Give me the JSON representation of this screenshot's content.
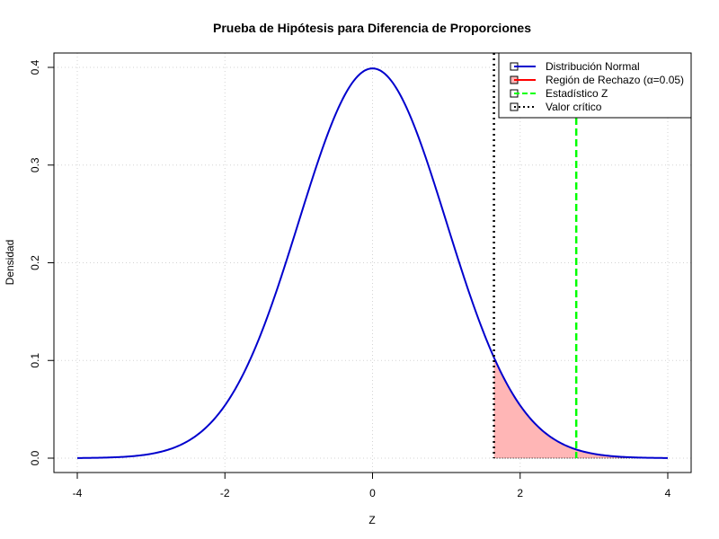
{
  "chart_data": {
    "type": "line",
    "title": "Prueba de Hipótesis para Diferencia de Proporciones",
    "xlabel": "Z",
    "ylabel": "Densidad",
    "xlim": [
      -4,
      4
    ],
    "ylim": [
      0,
      0.4
    ],
    "x_ticks": [
      "-4",
      "-2",
      "0",
      "2",
      "4"
    ],
    "x_tick_values": [
      -4,
      -2,
      0,
      2,
      4
    ],
    "y_ticks": [
      "0.0",
      "0.1",
      "0.2",
      "0.3",
      "0.4"
    ],
    "y_tick_values": [
      0,
      0.1,
      0.2,
      0.3,
      0.4
    ],
    "grid": true,
    "legend_position": "top-right",
    "curve": {
      "distribution": "normal",
      "mean": 0,
      "sd": 1,
      "color": "#0000CD"
    },
    "rejection_region": {
      "from": 1.645,
      "to": 4,
      "fill": "#FFB6B6",
      "alpha": 0.05
    },
    "z_statistic": {
      "value": 2.76,
      "color": "#00FF00"
    },
    "critical_value": {
      "value": 1.645,
      "color": "#000000"
    },
    "legend": [
      {
        "label": "Distribución Normal",
        "color": "#0000CD",
        "style": "solid"
      },
      {
        "label": "Región de Rechazo (α=0.05)",
        "color": "#FF0000",
        "style": "solid",
        "fill": "#FFB6B6"
      },
      {
        "label": "Estadístico Z",
        "color": "#00FF00",
        "style": "dashed"
      },
      {
        "label": "Valor crítico",
        "color": "#000000",
        "style": "dotted"
      }
    ]
  }
}
